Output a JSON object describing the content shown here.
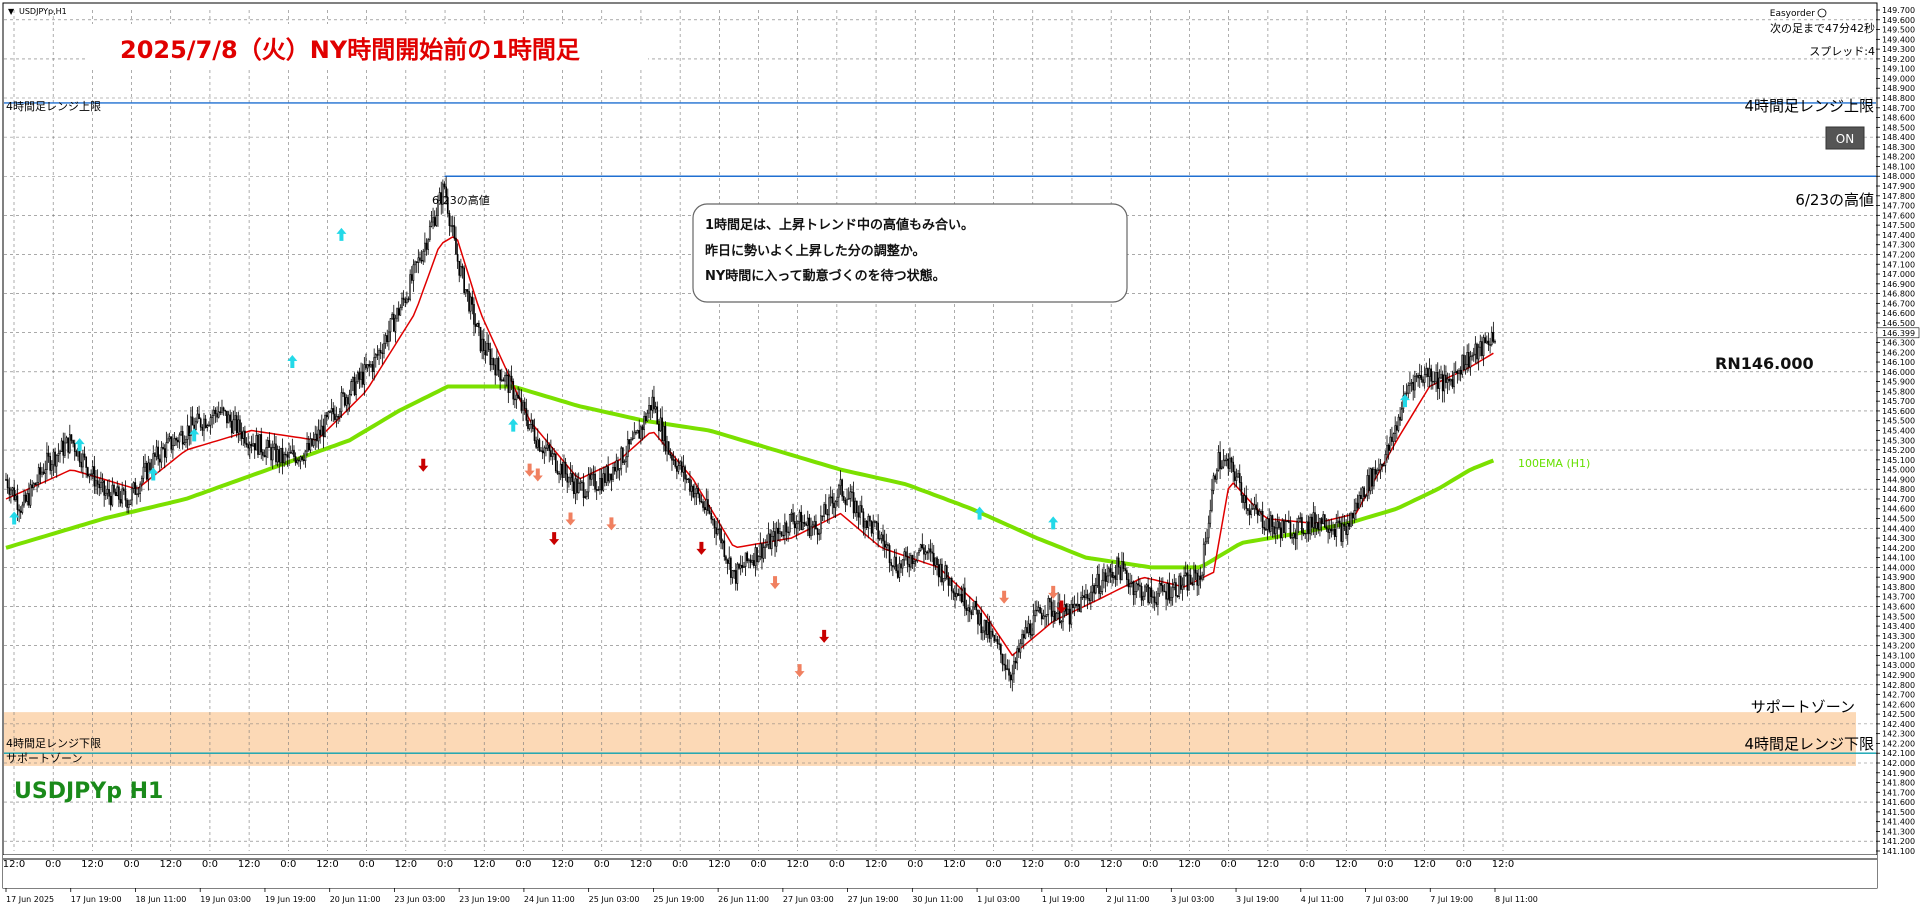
{
  "window": {
    "title": "USDJPYp,H1",
    "easyorder_label": "Easyorder",
    "countdown": "次の足まで47分42秒",
    "spread": "スプレッド:4",
    "on_button": "ON"
  },
  "annotations": {
    "headline": "2025/7/8（火）NY時間開始前の1時間足",
    "callout_lines": [
      "1時間足は、上昇トレンド中の高値もみ合い。",
      "昨日に勢いよく上昇した分の調整か。",
      "NY時間に入って動意づくのを待つ状態。"
    ],
    "round_number": "RN146.000",
    "symbol_label": "USDJPYp H1",
    "ema_label": "100EMA (H1)",
    "support_zone_right": "サポートゾーン"
  },
  "chart_data": {
    "type": "candlestick",
    "symbol": "USDJPYp",
    "timeframe": "H1",
    "ylim": [
      141.1,
      149.7
    ],
    "y_ticks": [
      "149.700",
      "149.600",
      "149.500",
      "149.400",
      "149.300",
      "149.200",
      "149.100",
      "149.000",
      "148.900",
      "148.800",
      "148.700",
      "148.600",
      "148.500",
      "148.400",
      "148.300",
      "148.200",
      "148.100",
      "148.000",
      "147.900",
      "147.800",
      "147.700",
      "147.600",
      "147.500",
      "147.400",
      "147.300",
      "147.200",
      "147.100",
      "147.000",
      "146.900",
      "146.800",
      "146.700",
      "146.600",
      "146.500",
      "146.399",
      "146.300",
      "146.200",
      "146.100",
      "146.000",
      "145.900",
      "145.800",
      "145.700",
      "145.600",
      "145.500",
      "145.400",
      "145.300",
      "145.200",
      "145.100",
      "145.000",
      "144.900",
      "144.800",
      "144.700",
      "144.600",
      "144.500",
      "144.400",
      "144.300",
      "144.200",
      "144.100",
      "144.000",
      "143.900",
      "143.800",
      "143.700",
      "143.600",
      "143.500",
      "143.400",
      "143.300",
      "143.200",
      "143.100",
      "143.000",
      "142.900",
      "142.800",
      "142.700",
      "142.600",
      "142.500",
      "142.400",
      "142.300",
      "142.200",
      "142.100",
      "142.000",
      "141.900",
      "141.800",
      "141.700",
      "141.600",
      "141.500",
      "141.400",
      "141.300",
      "141.200",
      "141.100"
    ],
    "current_price": 146.399,
    "time_labels": [
      "17 Jun 2025",
      "17 Jun 19:00",
      "18 Jun 11:00",
      "19 Jun 03:00",
      "19 Jun 19:00",
      "20 Jun 11:00",
      "23 Jun 03:00",
      "23 Jun 19:00",
      "24 Jun 11:00",
      "25 Jun 03:00",
      "25 Jun 19:00",
      "26 Jun 11:00",
      "27 Jun 03:00",
      "27 Jun 19:00",
      "30 Jun 11:00",
      "1 Jul 03:00",
      "1 Jul 19:00",
      "2 Jul 11:00",
      "3 Jul 03:00",
      "3 Jul 19:00",
      "4 Jul 11:00",
      "7 Jul 03:00",
      "7 Jul 19:00",
      "8 Jul 11:00"
    ],
    "hour_labels": [
      "12:0",
      "0:0",
      "12:0",
      "0:0",
      "12:0",
      "0:0",
      "12:0",
      "0:0",
      "12:0",
      "0:0",
      "12:0",
      "0:0",
      "12:0",
      "0:0",
      "12:0",
      "0:0",
      "12:0",
      "0:0",
      "12:0",
      "0:0",
      "12:0",
      "0:0",
      "12:0",
      "0:0",
      "12:0",
      "0:0",
      "12:0",
      "0:0",
      "12:0",
      "0:0",
      "12:0",
      "0:0",
      "12:0",
      "0:0",
      "12:0",
      "0:0",
      "12:0",
      "0:0",
      "12:0"
    ],
    "levels": [
      {
        "name": "4時間足レンジ上限",
        "price": 148.75,
        "color": "#1f6fd1"
      },
      {
        "name": "6/23の高値",
        "price": 148.0,
        "color": "#1f6fd1"
      },
      {
        "name": "4時間足レンジ下限",
        "price": 142.1,
        "color": "#0aa0b0"
      }
    ],
    "support_zone": {
      "name": "サポートゾーン",
      "from": 141.97,
      "to": 142.52,
      "color": "#fcd9b6"
    },
    "level_labels": {
      "upper_left": "4時間足レンジ上限",
      "upper_right": "4時間足レンジ上限",
      "high_left": "6/23の高値",
      "high_right": "6/23の高値",
      "lower_left": "4時間足レンジ下限",
      "lower_right": "4時間足レンジ下限",
      "support_left": "サポートゾーン"
    },
    "close_anchors": [
      [
        0,
        144.9
      ],
      [
        10,
        144.6
      ],
      [
        24,
        145.05
      ],
      [
        40,
        145.3
      ],
      [
        60,
        144.75
      ],
      [
        75,
        144.7
      ],
      [
        90,
        145.1
      ],
      [
        110,
        145.4
      ],
      [
        130,
        145.6
      ],
      [
        150,
        145.3
      ],
      [
        170,
        145.1
      ],
      [
        185,
        145.2
      ],
      [
        205,
        145.7
      ],
      [
        225,
        146.1
      ],
      [
        245,
        146.8
      ],
      [
        260,
        147.5
      ],
      [
        268,
        147.9
      ],
      [
        275,
        147.2
      ],
      [
        290,
        146.3
      ],
      [
        310,
        145.8
      ],
      [
        325,
        145.3
      ],
      [
        340,
        145.0
      ],
      [
        350,
        144.8
      ],
      [
        365,
        144.9
      ],
      [
        385,
        145.3
      ],
      [
        395,
        145.7
      ],
      [
        405,
        145.2
      ],
      [
        420,
        144.8
      ],
      [
        435,
        144.4
      ],
      [
        445,
        143.9
      ],
      [
        455,
        144.1
      ],
      [
        470,
        144.3
      ],
      [
        480,
        144.5
      ],
      [
        495,
        144.4
      ],
      [
        510,
        144.8
      ],
      [
        520,
        144.6
      ],
      [
        535,
        144.3
      ],
      [
        545,
        144.0
      ],
      [
        560,
        144.2
      ],
      [
        575,
        143.9
      ],
      [
        590,
        143.6
      ],
      [
        605,
        143.2
      ],
      [
        615,
        142.9
      ],
      [
        622,
        143.3
      ],
      [
        635,
        143.6
      ],
      [
        650,
        143.5
      ],
      [
        665,
        143.8
      ],
      [
        680,
        144.0
      ],
      [
        690,
        143.8
      ],
      [
        700,
        143.7
      ],
      [
        715,
        143.8
      ],
      [
        730,
        143.9
      ],
      [
        740,
        145.1
      ],
      [
        750,
        145.0
      ],
      [
        760,
        144.6
      ],
      [
        775,
        144.4
      ],
      [
        790,
        144.4
      ],
      [
        805,
        144.5
      ],
      [
        818,
        144.35
      ],
      [
        830,
        144.8
      ],
      [
        845,
        145.2
      ],
      [
        858,
        145.9
      ],
      [
        870,
        146.0
      ],
      [
        880,
        145.85
      ],
      [
        890,
        146.1
      ],
      [
        900,
        146.2
      ],
      [
        910,
        146.4
      ]
    ],
    "ema100_anchors": [
      [
        0,
        144.2
      ],
      [
        60,
        144.5
      ],
      [
        110,
        144.7
      ],
      [
        160,
        145.0
      ],
      [
        210,
        145.3
      ],
      [
        240,
        145.6
      ],
      [
        270,
        145.85
      ],
      [
        310,
        145.85
      ],
      [
        350,
        145.65
      ],
      [
        390,
        145.5
      ],
      [
        430,
        145.4
      ],
      [
        470,
        145.2
      ],
      [
        510,
        145.0
      ],
      [
        550,
        144.85
      ],
      [
        590,
        144.6
      ],
      [
        630,
        144.3
      ],
      [
        660,
        144.1
      ],
      [
        700,
        144.0
      ],
      [
        730,
        144.0
      ],
      [
        755,
        144.25
      ],
      [
        790,
        144.35
      ],
      [
        820,
        144.45
      ],
      [
        850,
        144.6
      ],
      [
        875,
        144.8
      ],
      [
        895,
        145.0
      ],
      [
        910,
        145.1
      ]
    ],
    "ma_fast_anchors": [
      [
        0,
        144.7
      ],
      [
        40,
        145.0
      ],
      [
        80,
        144.8
      ],
      [
        110,
        145.2
      ],
      [
        150,
        145.4
      ],
      [
        190,
        145.3
      ],
      [
        220,
        145.8
      ],
      [
        250,
        146.6
      ],
      [
        265,
        147.3
      ],
      [
        275,
        147.4
      ],
      [
        290,
        146.6
      ],
      [
        320,
        145.5
      ],
      [
        350,
        144.9
      ],
      [
        375,
        145.1
      ],
      [
        395,
        145.4
      ],
      [
        420,
        144.9
      ],
      [
        445,
        144.2
      ],
      [
        480,
        144.3
      ],
      [
        510,
        144.55
      ],
      [
        535,
        144.2
      ],
      [
        570,
        144.0
      ],
      [
        595,
        143.6
      ],
      [
        615,
        143.1
      ],
      [
        640,
        143.45
      ],
      [
        665,
        143.65
      ],
      [
        695,
        143.9
      ],
      [
        720,
        143.8
      ],
      [
        738,
        143.95
      ],
      [
        748,
        144.9
      ],
      [
        770,
        144.5
      ],
      [
        800,
        144.45
      ],
      [
        825,
        144.55
      ],
      [
        850,
        145.3
      ],
      [
        870,
        145.85
      ],
      [
        895,
        146.05
      ],
      [
        910,
        146.2
      ]
    ],
    "arrows_up": [
      [
        5,
        144.5
      ],
      [
        45,
        145.25
      ],
      [
        90,
        144.95
      ],
      [
        115,
        145.35
      ],
      [
        175,
        146.1
      ],
      [
        205,
        147.4
      ],
      [
        310,
        145.45
      ],
      [
        595,
        144.55
      ],
      [
        640,
        144.45
      ],
      [
        855,
        145.7
      ]
    ],
    "arrows_down": [
      [
        255,
        145.05
      ],
      [
        320,
        145.0
      ],
      [
        325,
        144.95
      ],
      [
        335,
        144.3
      ],
      [
        345,
        144.5
      ],
      [
        370,
        144.45
      ],
      [
        425,
        144.2
      ],
      [
        470,
        143.85
      ],
      [
        485,
        142.95
      ],
      [
        500,
        143.3
      ],
      [
        610,
        143.7
      ],
      [
        640,
        143.75
      ],
      [
        645,
        143.6
      ]
    ]
  }
}
